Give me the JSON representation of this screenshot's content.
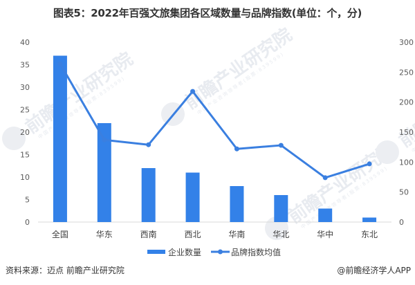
{
  "title": "图表5：2022年百强文旅集团各区域数量与品牌指数(单位：个，分)",
  "footer": {
    "source": "资料来源：迈点 前瞻产业研究院",
    "credit": "@前瞻经济学人APP"
  },
  "watermark": {
    "text": "前瞻产业研究院",
    "sub": "中国产业咨询领导者(股票:839599)"
  },
  "colors": {
    "bar": "#3381E8",
    "line": "#3A7FE0",
    "axis": "#D9D9D9"
  },
  "legend": [
    {
      "label": "企业数量",
      "type": "bar"
    },
    {
      "label": "品牌指数均值",
      "type": "line"
    }
  ],
  "chart_data": {
    "type": "bar+line",
    "title": "图表5：2022年百强文旅集团各区域数量与品牌指数(单位：个，分)",
    "categories": [
      "全国",
      "华东",
      "西南",
      "西北",
      "华南",
      "华北",
      "华中",
      "东北"
    ],
    "series": [
      {
        "name": "企业数量",
        "type": "bar",
        "axis": "left",
        "values": [
          37,
          22,
          12,
          11,
          8,
          6,
          3,
          1
        ]
      },
      {
        "name": "品牌指数均值",
        "type": "line",
        "axis": "right",
        "values": [
          264,
          137,
          129,
          218,
          122,
          128,
          74,
          97
        ]
      }
    ],
    "y_left": {
      "min": 0,
      "max": 40,
      "ticks": [
        0,
        5,
        10,
        15,
        20,
        25,
        30,
        35,
        40
      ]
    },
    "y_right": {
      "min": 0,
      "max": 300,
      "ticks": [
        0,
        50,
        100,
        150,
        200,
        250,
        300
      ]
    },
    "xlabel": "",
    "ylabel": "",
    "grid": false,
    "legend_position": "bottom"
  }
}
